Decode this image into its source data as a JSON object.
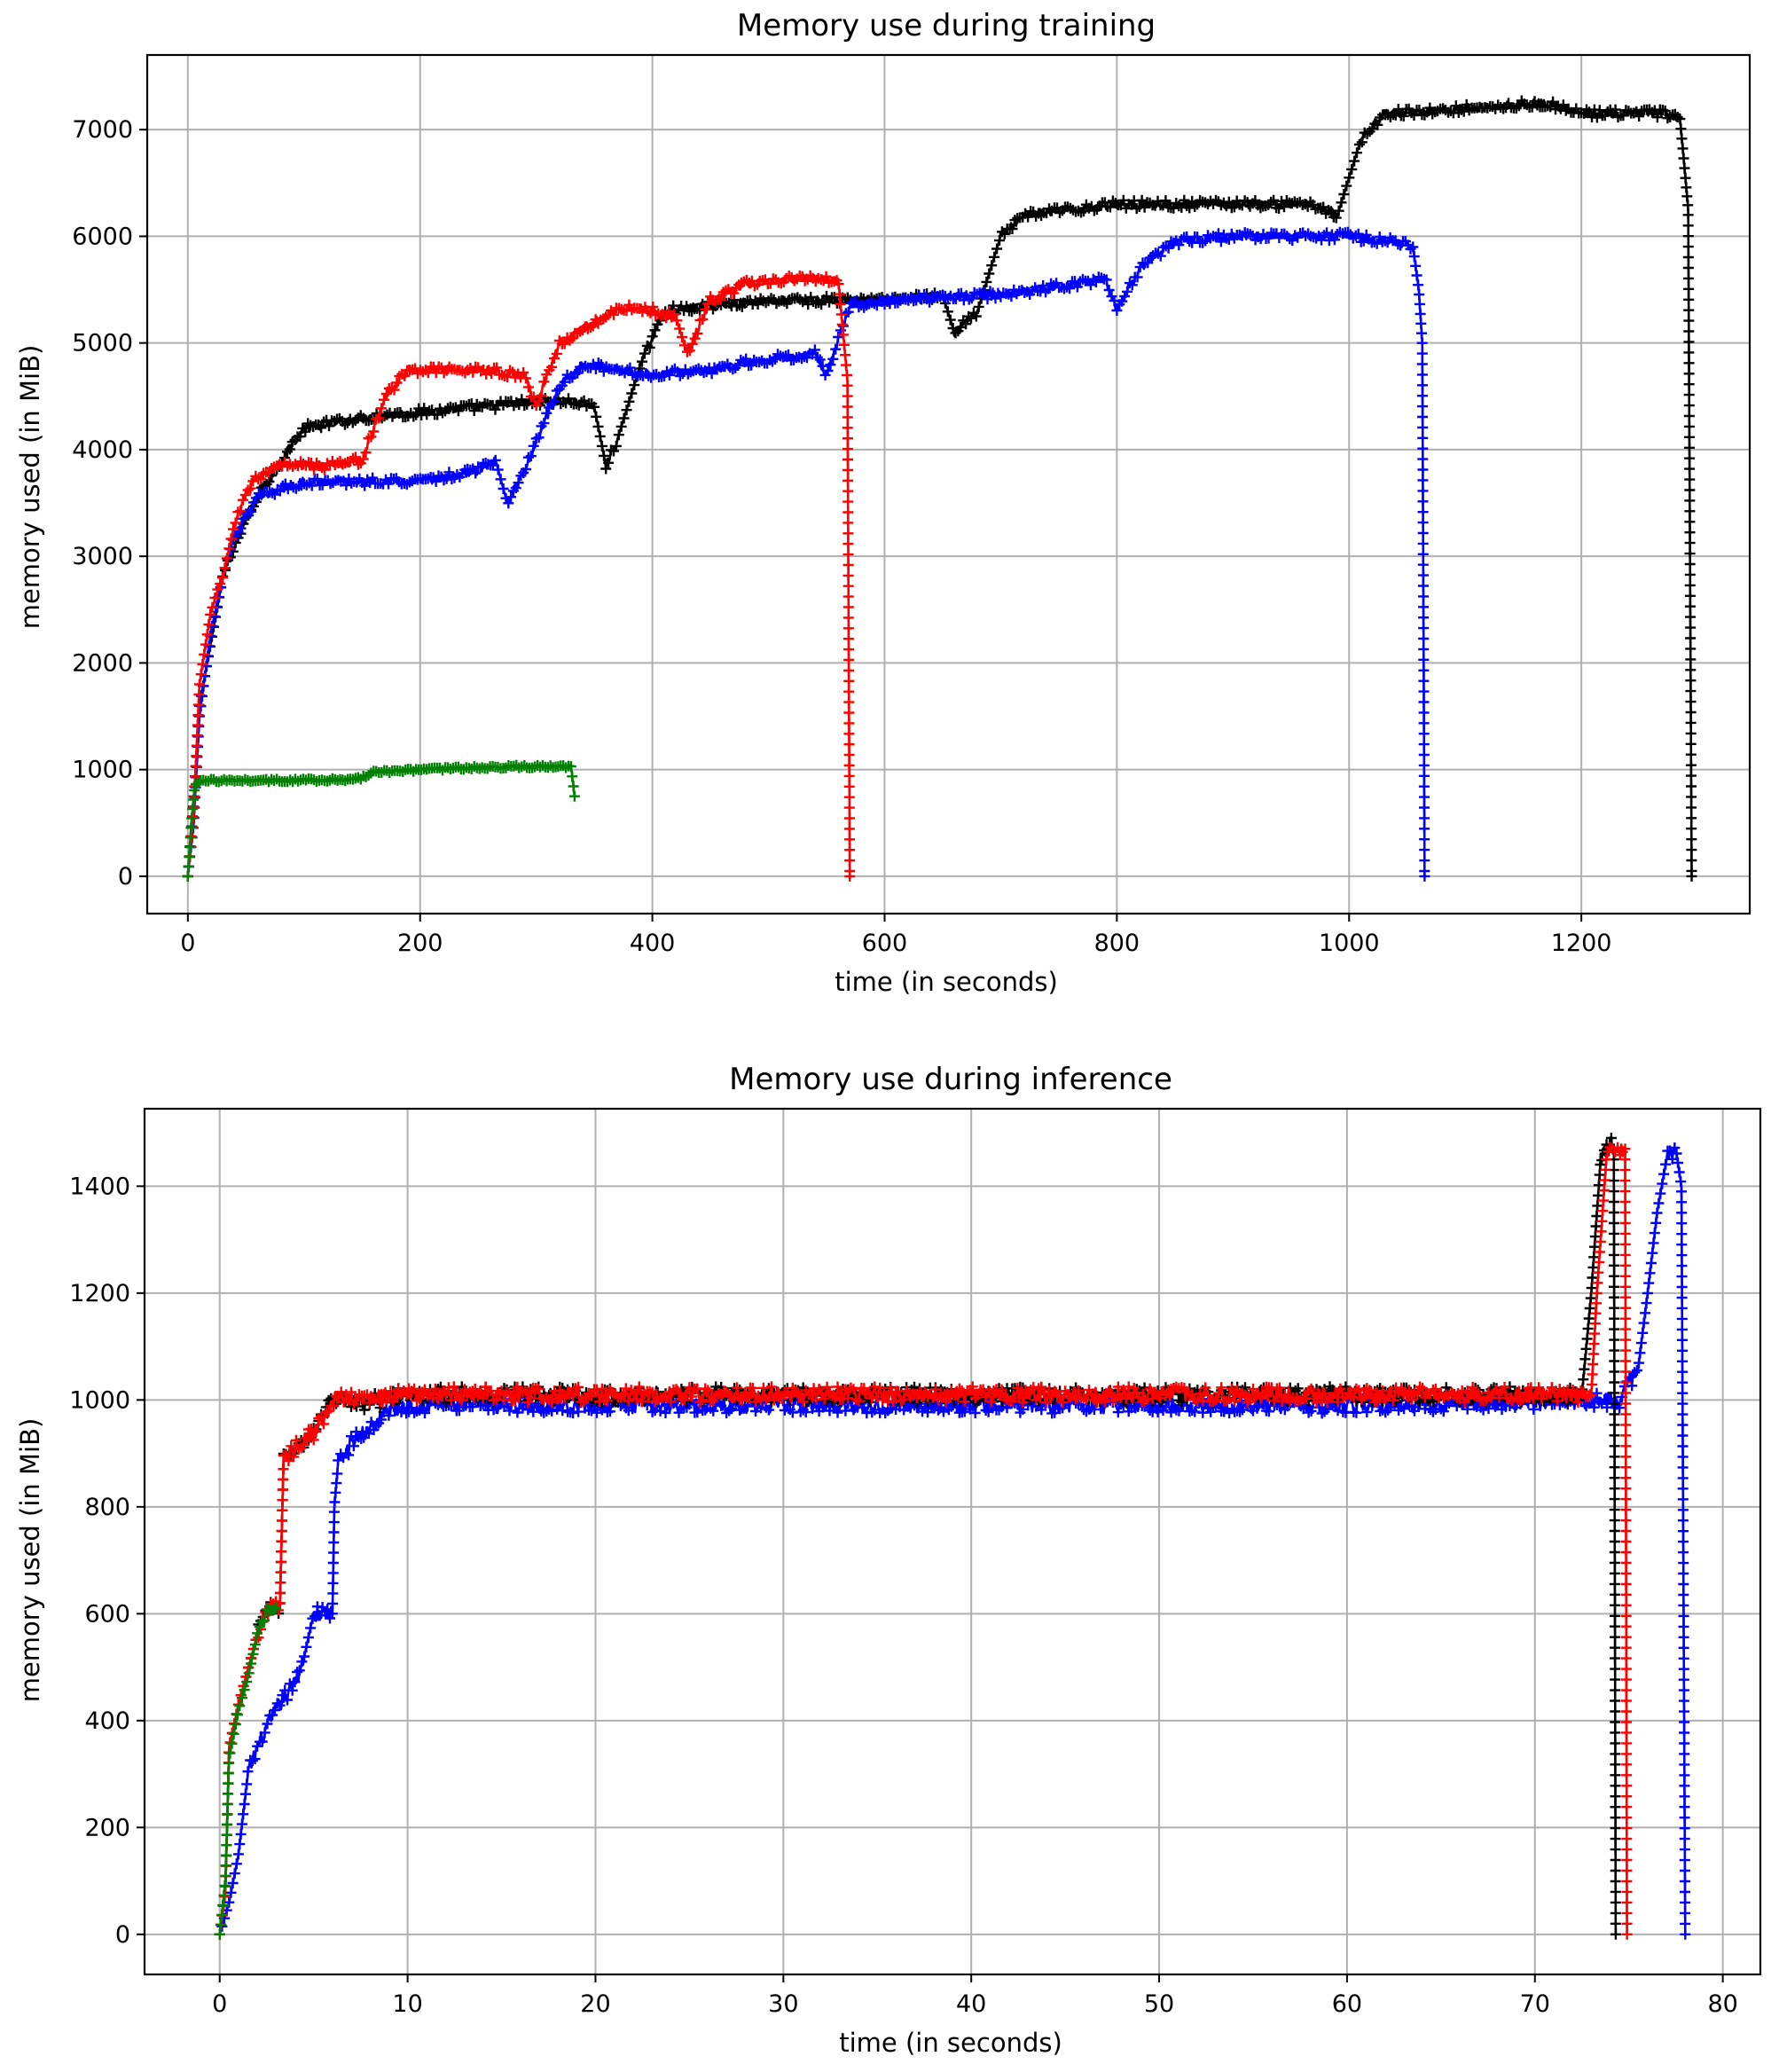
{
  "chart_data": [
    {
      "type": "line",
      "title": "Memory use during training",
      "xlabel": "time (in seconds)",
      "ylabel": "memory used (in MiB)",
      "xlim": [
        -35,
        1345
      ],
      "ylim": [
        -350,
        7700
      ],
      "xticks": [
        0,
        200,
        400,
        600,
        800,
        1000,
        1200
      ],
      "yticks": [
        0,
        1000,
        2000,
        3000,
        4000,
        5000,
        6000,
        7000
      ],
      "grid": true,
      "marker": "+",
      "series": [
        {
          "color": "#000000",
          "noise": 40,
          "points": [
            [
              0,
              0
            ],
            [
              5,
              700
            ],
            [
              10,
              1600
            ],
            [
              20,
              2200
            ],
            [
              30,
              2800
            ],
            [
              40,
              3100
            ],
            [
              60,
              3550
            ],
            [
              80,
              3900
            ],
            [
              100,
              4200
            ],
            [
              150,
              4300
            ],
            [
              200,
              4350
            ],
            [
              250,
              4400
            ],
            [
              300,
              4450
            ],
            [
              330,
              4450
            ],
            [
              350,
              4400
            ],
            [
              360,
              3850
            ],
            [
              370,
              4100
            ],
            [
              390,
              4800
            ],
            [
              410,
              5300
            ],
            [
              450,
              5350
            ],
            [
              500,
              5400
            ],
            [
              550,
              5400
            ],
            [
              600,
              5400
            ],
            [
              650,
              5450
            ],
            [
              660,
              5100
            ],
            [
              680,
              5300
            ],
            [
              700,
              6000
            ],
            [
              720,
              6200
            ],
            [
              800,
              6300
            ],
            [
              900,
              6300
            ],
            [
              970,
              6300
            ],
            [
              990,
              6200
            ],
            [
              1010,
              6900
            ],
            [
              1030,
              7150
            ],
            [
              1100,
              7200
            ],
            [
              1170,
              7250
            ],
            [
              1200,
              7150
            ],
            [
              1270,
              7150
            ],
            [
              1285,
              7100
            ],
            [
              1290,
              6500
            ],
            [
              1292,
              6250
            ],
            [
              1295,
              0
            ]
          ]
        },
        {
          "color": "#0000ff",
          "noise": 40,
          "points": [
            [
              0,
              0
            ],
            [
              5,
              500
            ],
            [
              10,
              1500
            ],
            [
              20,
              2300
            ],
            [
              30,
              2800
            ],
            [
              40,
              3200
            ],
            [
              60,
              3550
            ],
            [
              100,
              3700
            ],
            [
              150,
              3700
            ],
            [
              200,
              3700
            ],
            [
              250,
              3800
            ],
            [
              265,
              3900
            ],
            [
              275,
              3500
            ],
            [
              290,
              3800
            ],
            [
              320,
              4600
            ],
            [
              340,
              4800
            ],
            [
              400,
              4700
            ],
            [
              450,
              4750
            ],
            [
              500,
              4850
            ],
            [
              540,
              4900
            ],
            [
              550,
              4700
            ],
            [
              570,
              5350
            ],
            [
              600,
              5400
            ],
            [
              700,
              5450
            ],
            [
              790,
              5600
            ],
            [
              800,
              5300
            ],
            [
              820,
              5700
            ],
            [
              850,
              5950
            ],
            [
              900,
              6000
            ],
            [
              1000,
              6000
            ],
            [
              1040,
              5950
            ],
            [
              1055,
              5900
            ],
            [
              1060,
              5500
            ],
            [
              1063,
              5000
            ],
            [
              1065,
              0
            ]
          ]
        },
        {
          "color": "#ff0000",
          "noise": 40,
          "points": [
            [
              0,
              0
            ],
            [
              5,
              600
            ],
            [
              10,
              1800
            ],
            [
              20,
              2500
            ],
            [
              30,
              2800
            ],
            [
              40,
              3300
            ],
            [
              55,
              3700
            ],
            [
              80,
              3850
            ],
            [
              120,
              3850
            ],
            [
              150,
              3900
            ],
            [
              170,
              4500
            ],
            [
              190,
              4750
            ],
            [
              250,
              4750
            ],
            [
              290,
              4700
            ],
            [
              300,
              4400
            ],
            [
              320,
              5000
            ],
            [
              350,
              5200
            ],
            [
              380,
              5350
            ],
            [
              420,
              5250
            ],
            [
              430,
              4900
            ],
            [
              450,
              5400
            ],
            [
              480,
              5550
            ],
            [
              520,
              5600
            ],
            [
              560,
              5600
            ],
            [
              568,
              4650
            ],
            [
              570,
              0
            ]
          ]
        },
        {
          "color": "#008000",
          "noise": 15,
          "points": [
            [
              0,
              0
            ],
            [
              3,
              500
            ],
            [
              6,
              850
            ],
            [
              10,
              900
            ],
            [
              30,
              900
            ],
            [
              80,
              900
            ],
            [
              120,
              900
            ],
            [
              150,
              920
            ],
            [
              160,
              980
            ],
            [
              200,
              1000
            ],
            [
              250,
              1020
            ],
            [
              300,
              1030
            ],
            [
              330,
              1030
            ],
            [
              333,
              750
            ]
          ]
        }
      ]
    },
    {
      "type": "line",
      "title": "Memory use during inference",
      "xlabel": "time (in seconds)",
      "ylabel": "memory used (in MiB)",
      "xlim": [
        -4,
        82
      ],
      "ylim": [
        -75,
        1545
      ],
      "xticks": [
        0,
        10,
        20,
        30,
        40,
        50,
        60,
        70,
        80
      ],
      "yticks": [
        0,
        200,
        400,
        600,
        800,
        1000,
        1200,
        1400
      ],
      "grid": true,
      "marker": "+",
      "series": [
        {
          "color": "#0000ff",
          "noise": 15,
          "points": [
            [
              0,
              0
            ],
            [
              0.5,
              60
            ],
            [
              1,
              150
            ],
            [
              1.5,
              300
            ],
            [
              2,
              350
            ],
            [
              3,
              420
            ],
            [
              4,
              470
            ],
            [
              4.5,
              520
            ],
            [
              5,
              600
            ],
            [
              6,
              600
            ],
            [
              6.1,
              800
            ],
            [
              6.3,
              880
            ],
            [
              7,
              920
            ],
            [
              8,
              950
            ],
            [
              9,
              980
            ],
            [
              10,
              990
            ],
            [
              20,
              990
            ],
            [
              30,
              990
            ],
            [
              40,
              990
            ],
            [
              50,
              990
            ],
            [
              60,
              990
            ],
            [
              70,
              995
            ],
            [
              73.5,
              1000
            ],
            [
              74.5,
              1000
            ],
            [
              75.5,
              1060
            ],
            [
              76,
              1200
            ],
            [
              76.5,
              1350
            ],
            [
              77,
              1450
            ],
            [
              77.5,
              1470
            ],
            [
              77.8,
              1400
            ],
            [
              78,
              0
            ]
          ]
        },
        {
          "color": "#000000",
          "noise": 15,
          "points": [
            [
              0,
              0
            ],
            [
              0.3,
              80
            ],
            [
              0.5,
              350
            ],
            [
              1,
              430
            ],
            [
              2,
              560
            ],
            [
              2.5,
              610
            ],
            [
              3.2,
              610
            ],
            [
              3.4,
              890
            ],
            [
              4,
              910
            ],
            [
              5,
              940
            ],
            [
              5.6,
              970
            ],
            [
              6,
              1000
            ],
            [
              7,
              990
            ],
            [
              10,
              1010
            ],
            [
              20,
              1010
            ],
            [
              30,
              1010
            ],
            [
              40,
              1010
            ],
            [
              50,
              1010
            ],
            [
              60,
              1010
            ],
            [
              70,
              1010
            ],
            [
              72.5,
              1010
            ],
            [
              73,
              1200
            ],
            [
              73.5,
              1450
            ],
            [
              74,
              1480
            ],
            [
              74.2,
              1470
            ],
            [
              74.3,
              0
            ]
          ]
        },
        {
          "color": "#ff0000",
          "noise": 15,
          "points": [
            [
              0,
              0
            ],
            [
              0.3,
              80
            ],
            [
              0.5,
              350
            ],
            [
              1,
              430
            ],
            [
              2,
              560
            ],
            [
              2.5,
              610
            ],
            [
              3.2,
              610
            ],
            [
              3.4,
              890
            ],
            [
              4,
              910
            ],
            [
              5,
              940
            ],
            [
              5.6,
              970
            ],
            [
              6,
              1000
            ],
            [
              7,
              1000
            ],
            [
              10,
              1010
            ],
            [
              20,
              1010
            ],
            [
              30,
              1010
            ],
            [
              40,
              1010
            ],
            [
              50,
              1010
            ],
            [
              60,
              1010
            ],
            [
              70,
              1010
            ],
            [
              73,
              1010
            ],
            [
              73.3,
              1200
            ],
            [
              73.8,
              1450
            ],
            [
              74,
              1480
            ],
            [
              74.8,
              1470
            ],
            [
              74.9,
              0
            ]
          ]
        },
        {
          "color": "#008000",
          "noise": 10,
          "points": [
            [
              0,
              0
            ],
            [
              0.3,
              100
            ],
            [
              0.5,
              330
            ],
            [
              1,
              420
            ],
            [
              1.5,
              480
            ],
            [
              2,
              560
            ],
            [
              2.5,
              610
            ],
            [
              3,
              610
            ]
          ]
        }
      ]
    }
  ]
}
